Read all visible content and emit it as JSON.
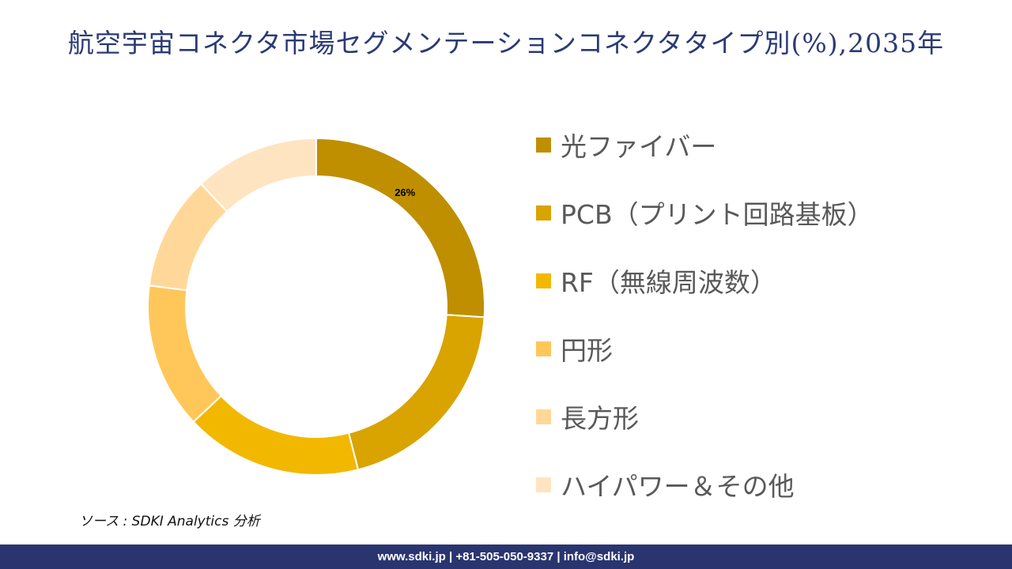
{
  "title": "航空宇宙コネクタ市場セグメンテーションコネクタタイプ別(%),2035年",
  "chart_data": {
    "type": "pie",
    "variant": "donut",
    "title": "航空宇宙コネクタ市場セグメンテーションコネクタタイプ別(%),2035年",
    "categories": [
      "光ファイバー",
      "PCB（プリント回路基板）",
      "RF（無線周波数）",
      " 円形",
      "長方形",
      "ハイパワー＆その他"
    ],
    "values": [
      26,
      20,
      17,
      14,
      11,
      12
    ],
    "colors": [
      "#bf8f00",
      "#d9a300",
      "#f2b800",
      "#ffc75a",
      "#ffd899",
      "#ffe4c2"
    ],
    "data_labels": [
      {
        "index": 0,
        "text": "26%"
      }
    ],
    "legend_position": "right",
    "start_angle_deg": 0,
    "direction": "clockwise"
  },
  "legend": {
    "items": [
      {
        "label": "光ファイバー",
        "color": "#bf8f00"
      },
      {
        "label": "PCB（プリント回路基板）",
        "color": "#d9a300"
      },
      {
        "label": "RF（無線周波数）",
        "color": "#f2b800"
      },
      {
        "label": " 円形",
        "color": "#ffc75a"
      },
      {
        "label": "長方形",
        "color": "#ffd899"
      },
      {
        "label": "ハイパワー＆その他",
        "color": "#ffe4c2"
      }
    ]
  },
  "source": "ソース : SDKI Analytics  分析",
  "footer": {
    "text": "www.sdki.jp | +81-505-050-9337 | info@sdki.jp"
  }
}
